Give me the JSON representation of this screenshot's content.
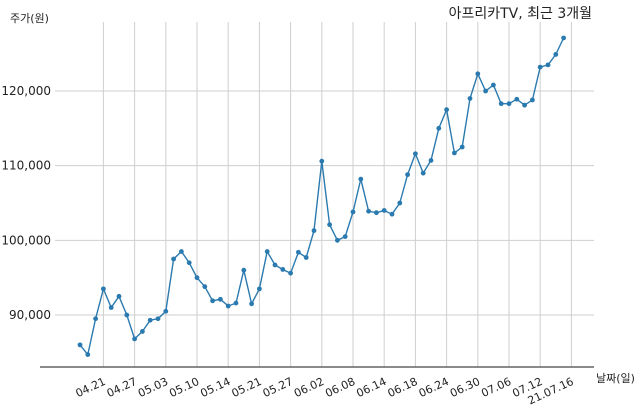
{
  "chart_data": {
    "type": "line",
    "title": "아프리카TV, 최근 3개월",
    "ylabel": "주가(원)",
    "xlabel": "날짜(일)",
    "ylim": [
      83000,
      129000
    ],
    "grid": true,
    "yticks": [
      90000,
      100000,
      110000,
      120000
    ],
    "ytick_labels": [
      "90,000",
      "100,000",
      "110,000",
      "120,000"
    ],
    "xtick_labels": [
      "04.21",
      "04.27",
      "05.03",
      "05.10",
      "05.14",
      "05.21",
      "05.27",
      "06.02",
      "06.08",
      "06.14",
      "06.18",
      "06.24",
      "06.30",
      "07.06",
      "07.12",
      "21.07.16"
    ],
    "xtick_index": [
      3,
      7,
      11,
      15,
      19,
      23,
      27,
      31,
      35,
      39,
      43,
      47,
      51,
      55,
      59,
      63
    ],
    "color": "#2a7ab0",
    "series": [
      {
        "values": [
          86000,
          84700,
          89500,
          93500,
          91000,
          92500,
          90000,
          86800,
          87800,
          89300,
          89500,
          90500,
          97500,
          98500,
          97000,
          95000,
          93800,
          91900,
          92100,
          91200,
          91600,
          96000,
          91500,
          93500,
          98500,
          96700,
          96100,
          95600,
          98400,
          97700,
          101300,
          110600,
          102100,
          100000,
          100500,
          103800,
          108200,
          103900,
          103700,
          104000,
          103500,
          105000,
          108800,
          111600,
          109000,
          110700,
          115000,
          117500,
          111700,
          112500,
          119000,
          122300,
          120000,
          120800,
          118300,
          118300,
          118900,
          118100,
          118800,
          123200,
          123500,
          124900,
          127100
        ]
      }
    ]
  }
}
